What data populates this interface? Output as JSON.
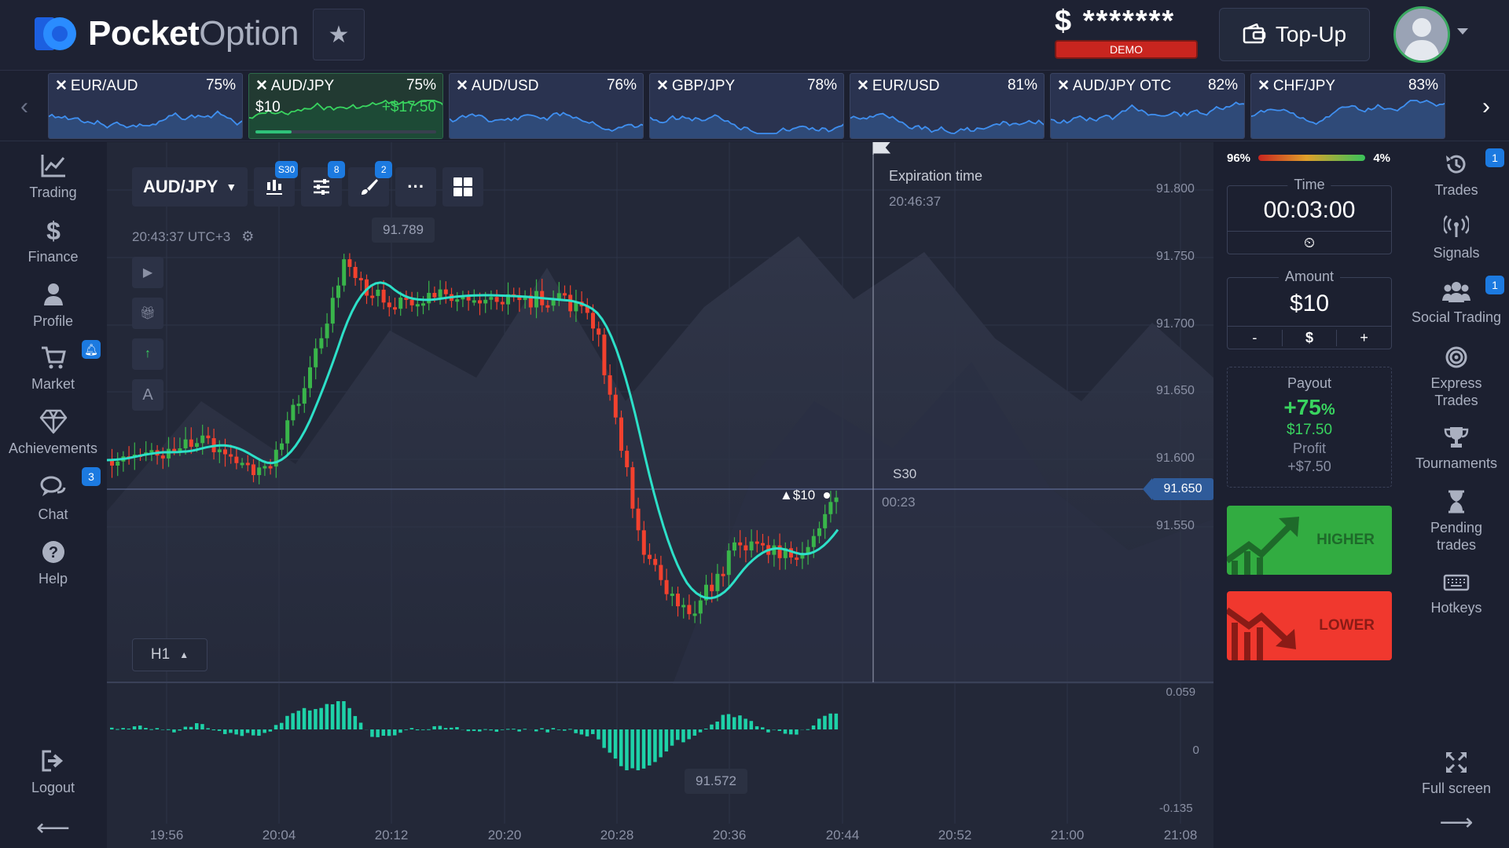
{
  "header": {
    "logo_bold": "Pocket",
    "logo_light": "Option",
    "balance": "$ *******",
    "demo_label": "DEMO",
    "topup_label": "Top-Up"
  },
  "assets": [
    {
      "name": "EUR/AUD",
      "payout": "75%"
    },
    {
      "name": "AUD/JPY",
      "payout": "75%",
      "amount": "$10",
      "profit": "+$17.50",
      "progress": 0.2,
      "active": true
    },
    {
      "name": "AUD/USD",
      "payout": "76%"
    },
    {
      "name": "GBP/JPY",
      "payout": "78%"
    },
    {
      "name": "EUR/USD",
      "payout": "81%"
    },
    {
      "name": "AUD/JPY OTC",
      "payout": "82%"
    },
    {
      "name": "CHF/JPY",
      "payout": "83%"
    }
  ],
  "left_nav": [
    {
      "label": "Trading",
      "icon": "chart-line-icon"
    },
    {
      "label": "Finance",
      "icon": "dollar-icon"
    },
    {
      "label": "Profile",
      "icon": "user-icon"
    },
    {
      "label": "Market",
      "icon": "cart-icon",
      "badge": "bell"
    },
    {
      "label": "Achievements",
      "icon": "diamond-icon"
    },
    {
      "label": "Chat",
      "icon": "chat-icon",
      "badge": "3"
    },
    {
      "label": "Help",
      "icon": "question-icon"
    },
    {
      "label": "Logout",
      "icon": "logout-icon"
    }
  ],
  "chart": {
    "pair": "AUD/JPY",
    "time_badge": "S30",
    "indicator_badge": "8",
    "drawing_badge": "2",
    "clock": "20:43:37 UTC+3",
    "timeframe": "H1",
    "high_label": "91.789",
    "low_label": "91.572",
    "expiration_title": "Expiration time",
    "expiration_time": "20:46:37",
    "period_label": "S30",
    "countdown": "00:23",
    "trade_marker": "▲$10",
    "current_price": "91.650",
    "y_ticks": [
      "91.800",
      "91.750",
      "91.700",
      "91.650",
      "91.600",
      "91.550"
    ],
    "x_ticks": [
      "19:56",
      "20:04",
      "20:12",
      "20:20",
      "20:28",
      "20:36",
      "20:44",
      "20:52",
      "21:00",
      "21:08"
    ],
    "osc_ticks": [
      "0.059",
      "0",
      "-0.135"
    ]
  },
  "panel": {
    "sentiment_left": "96%",
    "sentiment_right": "4%",
    "time_title": "Time",
    "time_value": "00:03:00",
    "amount_title": "Amount",
    "amount_value": "$10",
    "amount_minus": "-",
    "amount_currency": "$",
    "amount_plus": "+",
    "payout_title": "Payout",
    "payout_pct": "+75",
    "payout_pct_sign": "%",
    "payout_amount": "$17.50",
    "profit_title": "Profit",
    "profit_value": "+$7.50",
    "higher_label": "HIGHER",
    "lower_label": "LOWER"
  },
  "right_nav": [
    {
      "label": "Trades",
      "icon": "history-icon",
      "badge": "1"
    },
    {
      "label": "Signals",
      "icon": "signal-icon"
    },
    {
      "label": "Social Trading",
      "icon": "users-icon",
      "badge": "1"
    },
    {
      "label": "Express Trades",
      "icon": "target-icon"
    },
    {
      "label": "Tournaments",
      "icon": "trophy-icon"
    },
    {
      "label": "Pending trades",
      "icon": "hourglass-icon"
    },
    {
      "label": "Hotkeys",
      "icon": "keyboard-icon"
    },
    {
      "label": "Full screen",
      "icon": "fullscreen-icon"
    }
  ],
  "colors": {
    "up": "#39b54a",
    "down": "#f2412e",
    "ma": "#2de0c8",
    "osc": "#1ed2a8",
    "accent": "#1c7ae0"
  }
}
